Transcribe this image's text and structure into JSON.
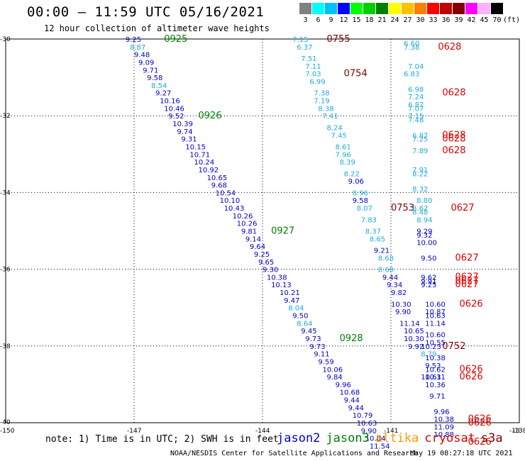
{
  "title": "00:00 – 11:59 UTC 05/16/2021",
  "subtitle": "12 hour collection of altimeter wave heights",
  "scale": {
    "labels": [
      "3",
      "6",
      "9",
      "12",
      "15",
      "18",
      "21",
      "24",
      "27",
      "30",
      "33",
      "36",
      "39",
      "42",
      "45",
      "70"
    ],
    "colors": [
      "#808080",
      "#00ffff",
      "#00c0ff",
      "#0000ff",
      "#00ff00",
      "#00d000",
      "#008000",
      "#ffff00",
      "#ffc000",
      "#ff8000",
      "#ff0000",
      "#c00000",
      "#800000",
      "#ff00ff",
      "#ffb0ff",
      "#000000"
    ],
    "units": "(ft)"
  },
  "axes": {
    "y_ticks": [
      "-30",
      "-32",
      "-34",
      "-36",
      "-38",
      "-40"
    ],
    "x_ticks": [
      "-147",
      "-144",
      "-141",
      "-138"
    ],
    "corner_left": "-150",
    "corner_right": "-13"
  },
  "colors": {
    "jason2": "#0000cc",
    "jason3": "#008000",
    "altika": "#ff9900",
    "cryosat": "#dd0000",
    "s3a": "#800000",
    "c_light": "#22aadd"
  },
  "note": "note: 1) Time is in UTC; 2) SWH is in feet",
  "satellites": [
    {
      "name": "jason2",
      "color": "#0000cc"
    },
    {
      "name": "jason3",
      "color": "#008000"
    },
    {
      "name": "altika",
      "color": "#ff9900"
    },
    {
      "name": "cryosat",
      "color": "#dd0000"
    },
    {
      "name": "s3a",
      "color": "#800000"
    }
  ],
  "footer": "NOAA/NESDIS Center for Satellite Applications and Research",
  "timestamp": "May 19 08:27:18 UTC 2021",
  "labels": [
    {
      "t": "9.25",
      "x": -147.2,
      "y": -30.0,
      "c": "b"
    },
    {
      "t": "0925",
      "x": -146.3,
      "y": -30.0,
      "c": "g",
      "time": true
    },
    {
      "t": "8.87",
      "x": -147.1,
      "y": -30.2,
      "c": "l"
    },
    {
      "t": "9.48",
      "x": -147.0,
      "y": -30.4,
      "c": "b"
    },
    {
      "t": "9.09",
      "x": -146.9,
      "y": -30.6,
      "c": "b"
    },
    {
      "t": "9.71",
      "x": -146.8,
      "y": -30.8,
      "c": "b"
    },
    {
      "t": "9.58",
      "x": -146.7,
      "y": -31.0,
      "c": "b"
    },
    {
      "t": "8.54",
      "x": -146.6,
      "y": -31.2,
      "c": "l"
    },
    {
      "t": "9.27",
      "x": -146.5,
      "y": -31.4,
      "c": "b"
    },
    {
      "t": "10.16",
      "x": -146.4,
      "y": -31.6,
      "c": "b"
    },
    {
      "t": "10.46",
      "x": -146.3,
      "y": -31.8,
      "c": "b"
    },
    {
      "t": "9.52",
      "x": -146.2,
      "y": -32.0,
      "c": "b"
    },
    {
      "t": "0926",
      "x": -145.5,
      "y": -32.0,
      "c": "g",
      "time": true
    },
    {
      "t": "10.39",
      "x": -146.1,
      "y": -32.2,
      "c": "b"
    },
    {
      "t": "9.74",
      "x": -146.0,
      "y": -32.4,
      "c": "b"
    },
    {
      "t": "9.31",
      "x": -145.9,
      "y": -32.6,
      "c": "b"
    },
    {
      "t": "10.15",
      "x": -145.8,
      "y": -32.8,
      "c": "b"
    },
    {
      "t": "10.71",
      "x": -145.7,
      "y": -33.0,
      "c": "b"
    },
    {
      "t": "10.24",
      "x": -145.6,
      "y": -33.2,
      "c": "b"
    },
    {
      "t": "10.92",
      "x": -145.5,
      "y": -33.4,
      "c": "b"
    },
    {
      "t": "10.65",
      "x": -145.3,
      "y": -33.6,
      "c": "b"
    },
    {
      "t": "9.68",
      "x": -145.2,
      "y": -33.8,
      "c": "b"
    },
    {
      "t": "10.54",
      "x": -145.1,
      "y": -34.0,
      "c": "b"
    },
    {
      "t": "10.10",
      "x": -145.0,
      "y": -34.2,
      "c": "b"
    },
    {
      "t": "10.43",
      "x": -144.9,
      "y": -34.4,
      "c": "b"
    },
    {
      "t": "10.26",
      "x": -144.7,
      "y": -34.6,
      "c": "b"
    },
    {
      "t": "10.26",
      "x": -144.6,
      "y": -34.8,
      "c": "b"
    },
    {
      "t": "9.81",
      "x": -144.5,
      "y": -35.0,
      "c": "b"
    },
    {
      "t": "0927",
      "x": -143.8,
      "y": -35.0,
      "c": "g",
      "time": true
    },
    {
      "t": "9.14",
      "x": -144.4,
      "y": -35.2,
      "c": "b"
    },
    {
      "t": "9.64",
      "x": -144.3,
      "y": -35.4,
      "c": "b"
    },
    {
      "t": "9.25",
      "x": -144.2,
      "y": -35.6,
      "c": "b"
    },
    {
      "t": "9.65",
      "x": -144.1,
      "y": -35.8,
      "c": "b"
    },
    {
      "t": "9.30",
      "x": -144.0,
      "y": -36.0,
      "c": "b"
    },
    {
      "t": "10.38",
      "x": -143.9,
      "y": -36.2,
      "c": "b"
    },
    {
      "t": "10.13",
      "x": -143.8,
      "y": -36.4,
      "c": "b"
    },
    {
      "t": "10.21",
      "x": -143.6,
      "y": -36.6,
      "c": "b"
    },
    {
      "t": "9.47",
      "x": -143.5,
      "y": -36.8,
      "c": "b"
    },
    {
      "t": "8.04",
      "x": -143.4,
      "y": -37.0,
      "c": "l"
    },
    {
      "t": "9.50",
      "x": -143.3,
      "y": -37.2,
      "c": "b"
    },
    {
      "t": "8.64",
      "x": -143.2,
      "y": -37.4,
      "c": "l"
    },
    {
      "t": "9.45",
      "x": -143.1,
      "y": -37.6,
      "c": "b"
    },
    {
      "t": "9.73",
      "x": -143.0,
      "y": -37.8,
      "c": "b"
    },
    {
      "t": "0928",
      "x": -142.2,
      "y": -37.8,
      "c": "g",
      "time": true
    },
    {
      "t": "9.73",
      "x": -142.9,
      "y": -38.0,
      "c": "b"
    },
    {
      "t": "9.11",
      "x": -142.8,
      "y": -38.2,
      "c": "b"
    },
    {
      "t": "9.59",
      "x": -142.7,
      "y": -38.4,
      "c": "b"
    },
    {
      "t": "10.06",
      "x": -142.6,
      "y": -38.6,
      "c": "b"
    },
    {
      "t": "9.84",
      "x": -142.5,
      "y": -38.8,
      "c": "b"
    },
    {
      "t": "9.96",
      "x": -142.3,
      "y": -39.0,
      "c": "b"
    },
    {
      "t": "10.68",
      "x": -142.2,
      "y": -39.2,
      "c": "b"
    },
    {
      "t": "9.44",
      "x": -142.1,
      "y": -39.4,
      "c": "b"
    },
    {
      "t": "9.44",
      "x": -142.0,
      "y": -39.6,
      "c": "b"
    },
    {
      "t": "10.79",
      "x": -141.9,
      "y": -39.8,
      "c": "b"
    },
    {
      "t": "10.63",
      "x": -141.8,
      "y": -40.0,
      "c": "b"
    },
    {
      "t": "9.90",
      "x": -141.7,
      "y": -40.2,
      "c": "b"
    },
    {
      "t": "10.04",
      "x": -141.6,
      "y": -40.4,
      "c": "b"
    },
    {
      "t": "11.54",
      "x": -141.5,
      "y": -40.6,
      "c": "b"
    },
    {
      "t": "7.15",
      "x": -143.3,
      "y": -30.0,
      "c": "l"
    },
    {
      "t": "0755",
      "x": -142.5,
      "y": -30.0,
      "c": "m",
      "time": true
    },
    {
      "t": "6.37",
      "x": -143.2,
      "y": -30.2,
      "c": "l"
    },
    {
      "t": "7.51",
      "x": -143.1,
      "y": -30.5,
      "c": "l"
    },
    {
      "t": "7.11",
      "x": -143.0,
      "y": -30.7,
      "c": "l"
    },
    {
      "t": "7.03",
      "x": -143.0,
      "y": -30.9,
      "c": "l"
    },
    {
      "t": "0754",
      "x": -142.1,
      "y": -30.9,
      "c": "m",
      "time": true
    },
    {
      "t": "6.99",
      "x": -142.9,
      "y": -31.1,
      "c": "l"
    },
    {
      "t": "7.38",
      "x": -142.8,
      "y": -31.4,
      "c": "l"
    },
    {
      "t": "7.19",
      "x": -142.8,
      "y": -31.6,
      "c": "l"
    },
    {
      "t": "8.38",
      "x": -142.7,
      "y": -31.8,
      "c": "l"
    },
    {
      "t": "7.41",
      "x": -142.6,
      "y": -32.0,
      "c": "l"
    },
    {
      "t": "8.24",
      "x": -142.5,
      "y": -32.3,
      "c": "l"
    },
    {
      "t": "7.45",
      "x": -142.4,
      "y": -32.5,
      "c": "l"
    },
    {
      "t": "8.61",
      "x": -142.3,
      "y": -32.8,
      "c": "l"
    },
    {
      "t": "7.96",
      "x": -142.3,
      "y": -33.0,
      "c": "l"
    },
    {
      "t": "8.39",
      "x": -142.2,
      "y": -33.2,
      "c": "l"
    },
    {
      "t": "8.22",
      "x": -142.1,
      "y": -33.5,
      "c": "l"
    },
    {
      "t": "9.06",
      "x": -142.0,
      "y": -33.7,
      "c": "b"
    },
    {
      "t": "8.96",
      "x": -141.9,
      "y": -34.0,
      "c": "l"
    },
    {
      "t": "9.58",
      "x": -141.9,
      "y": -34.2,
      "c": "b"
    },
    {
      "t": "8.07",
      "x": -141.8,
      "y": -34.4,
      "c": "l"
    },
    {
      "t": "0753",
      "x": -141.0,
      "y": -34.4,
      "c": "m",
      "time": true
    },
    {
      "t": "7.83",
      "x": -141.7,
      "y": -34.7,
      "c": "l"
    },
    {
      "t": "8.37",
      "x": -141.6,
      "y": -35.0,
      "c": "l"
    },
    {
      "t": "8.65",
      "x": -141.5,
      "y": -35.2,
      "c": "l"
    },
    {
      "t": "9.21",
      "x": -141.4,
      "y": -35.5,
      "c": "b"
    },
    {
      "t": "8.68",
      "x": -141.3,
      "y": -35.7,
      "c": "l"
    },
    {
      "t": "8.60",
      "x": -141.3,
      "y": -36.0,
      "c": "l"
    },
    {
      "t": "9.44",
      "x": -141.2,
      "y": -36.2,
      "c": "b"
    },
    {
      "t": "9.34",
      "x": -141.1,
      "y": -36.4,
      "c": "b"
    },
    {
      "t": "9.82",
      "x": -141.0,
      "y": -36.6,
      "c": "b"
    },
    {
      "t": "10.30",
      "x": -141.0,
      "y": -36.9,
      "c": "b"
    },
    {
      "t": "9.90",
      "x": -140.9,
      "y": -37.1,
      "c": "b"
    },
    {
      "t": "11.14",
      "x": -140.8,
      "y": -37.4,
      "c": "b"
    },
    {
      "t": "10.65",
      "x": -140.7,
      "y": -37.6,
      "c": "b"
    },
    {
      "t": "10.30",
      "x": -140.7,
      "y": -37.8,
      "c": "b"
    },
    {
      "t": "9.92",
      "x": -140.6,
      "y": -38.0,
      "c": "b"
    },
    {
      "t": "0752",
      "x": -139.8,
      "y": -38.0,
      "c": "m",
      "time": true
    },
    {
      "t": "6.60",
      "x": -140.7,
      "y": -30.1,
      "c": "l"
    },
    {
      "t": "7.38",
      "x": -140.7,
      "y": -30.2,
      "c": "l"
    },
    {
      "t": "0628",
      "x": -139.9,
      "y": -30.2,
      "c": "r",
      "time": true
    },
    {
      "t": "7.04",
      "x": -140.6,
      "y": -30.7,
      "c": "l"
    },
    {
      "t": "6.83",
      "x": -140.7,
      "y": -30.9,
      "c": "l"
    },
    {
      "t": "6.98",
      "x": -140.6,
      "y": -31.3,
      "c": "l"
    },
    {
      "t": "7.24",
      "x": -140.6,
      "y": -31.5,
      "c": "l"
    },
    {
      "t": "0628",
      "x": -139.8,
      "y": -31.4,
      "c": "r",
      "time": true
    },
    {
      "t": "6.87",
      "x": -140.6,
      "y": -31.7,
      "c": "l"
    },
    {
      "t": "7.07",
      "x": -140.6,
      "y": -31.8,
      "c": "l"
    },
    {
      "t": "7.15",
      "x": -140.6,
      "y": -32.0,
      "c": "l"
    },
    {
      "t": "7.48",
      "x": -140.6,
      "y": -32.1,
      "c": "l"
    },
    {
      "t": "6.87",
      "x": -140.5,
      "y": -32.5,
      "c": "l"
    },
    {
      "t": "7.25",
      "x": -140.5,
      "y": -32.6,
      "c": "l"
    },
    {
      "t": "0628",
      "x": -139.8,
      "y": -32.5,
      "c": "r",
      "time": true
    },
    {
      "t": "0628",
      "x": -139.8,
      "y": -32.6,
      "c": "r",
      "time": true
    },
    {
      "t": "7.89",
      "x": -140.5,
      "y": -32.9,
      "c": "l"
    },
    {
      "t": "0628",
      "x": -139.8,
      "y": -32.9,
      "c": "r",
      "time": true
    },
    {
      "t": "7.91",
      "x": -140.5,
      "y": -33.4,
      "c": "l"
    },
    {
      "t": "8.22",
      "x": -140.5,
      "y": -33.5,
      "c": "l"
    },
    {
      "t": "8.32",
      "x": -140.5,
      "y": -33.9,
      "c": "l"
    },
    {
      "t": "8.80",
      "x": -140.4,
      "y": -34.2,
      "c": "l"
    },
    {
      "t": "8.62",
      "x": -140.5,
      "y": -34.4,
      "c": "l"
    },
    {
      "t": "8.48",
      "x": -140.5,
      "y": -34.5,
      "c": "l"
    },
    {
      "t": "0627",
      "x": -139.6,
      "y": -34.4,
      "c": "r",
      "time": true
    },
    {
      "t": "8.94",
      "x": -140.4,
      "y": -34.7,
      "c": "l"
    },
    {
      "t": "9.29",
      "x": -140.4,
      "y": -35.0,
      "c": "b"
    },
    {
      "t": "9.32",
      "x": -140.4,
      "y": -35.1,
      "c": "b"
    },
    {
      "t": "10.00",
      "x": -140.4,
      "y": -35.3,
      "c": "b"
    },
    {
      "t": "9.50",
      "x": -140.3,
      "y": -35.7,
      "c": "b"
    },
    {
      "t": "0627",
      "x": -139.5,
      "y": -35.7,
      "c": "r",
      "time": true
    },
    {
      "t": "9.62",
      "x": -140.3,
      "y": -36.2,
      "c": "b"
    },
    {
      "t": "9.91",
      "x": -140.3,
      "y": -36.3,
      "c": "b"
    },
    {
      "t": "9.25",
      "x": -140.3,
      "y": -36.4,
      "c": "b"
    },
    {
      "t": "0627",
      "x": -139.5,
      "y": -36.2,
      "c": "r",
      "time": true
    },
    {
      "t": "0627",
      "x": -139.5,
      "y": -36.3,
      "c": "r",
      "time": true
    },
    {
      "t": "0627",
      "x": -139.5,
      "y": -36.4,
      "c": "r",
      "time": true
    },
    {
      "t": "10.60",
      "x": -140.2,
      "y": -36.9,
      "c": "b"
    },
    {
      "t": "10.87",
      "x": -140.2,
      "y": -37.1,
      "c": "b"
    },
    {
      "t": "10.63",
      "x": -140.2,
      "y": -37.2,
      "c": "b"
    },
    {
      "t": "0626",
      "x": -139.4,
      "y": -36.9,
      "c": "r",
      "time": true
    },
    {
      "t": "11.14",
      "x": -140.2,
      "y": -37.4,
      "c": "b"
    },
    {
      "t": "10.60",
      "x": -140.2,
      "y": -37.7,
      "c": "b"
    },
    {
      "t": "10.55",
      "x": -140.2,
      "y": -37.9,
      "c": "b"
    },
    {
      "t": "10.23",
      "x": -140.3,
      "y": -38.0,
      "c": "b"
    },
    {
      "t": "8.79",
      "x": -140.3,
      "y": -38.2,
      "c": "l"
    },
    {
      "t": "10.38",
      "x": -140.2,
      "y": -38.3,
      "c": "b"
    },
    {
      "t": "9.53",
      "x": -140.2,
      "y": -38.5,
      "c": "b"
    },
    {
      "t": "10.62",
      "x": -140.2,
      "y": -38.6,
      "c": "b"
    },
    {
      "t": "0626",
      "x": -139.4,
      "y": -38.6,
      "c": "r",
      "time": true
    },
    {
      "t": "10.61",
      "x": -140.3,
      "y": -38.8,
      "c": "b"
    },
    {
      "t": "10.31",
      "x": -140.2,
      "y": -38.8,
      "c": "b"
    },
    {
      "t": "0626",
      "x": -139.4,
      "y": -38.8,
      "c": "r",
      "time": true
    },
    {
      "t": "10.36",
      "x": -140.2,
      "y": -39.0,
      "c": "b"
    },
    {
      "t": "9.71",
      "x": -140.1,
      "y": -39.3,
      "c": "b"
    },
    {
      "t": "9.96",
      "x": -140.0,
      "y": -39.7,
      "c": "b"
    },
    {
      "t": "10.38",
      "x": -140.0,
      "y": -39.9,
      "c": "b"
    },
    {
      "t": "11.09",
      "x": -140.0,
      "y": -40.1,
      "c": "b"
    },
    {
      "t": "10.88",
      "x": -140.0,
      "y": -40.3,
      "c": "b"
    },
    {
      "t": "0626",
      "x": -139.2,
      "y": -39.9,
      "c": "r",
      "time": true
    },
    {
      "t": "0626",
      "x": -139.2,
      "y": -40.0,
      "c": "r",
      "time": true
    },
    {
      "t": "0626",
      "x": -139.2,
      "y": -40.5,
      "c": "r",
      "time": true
    }
  ]
}
